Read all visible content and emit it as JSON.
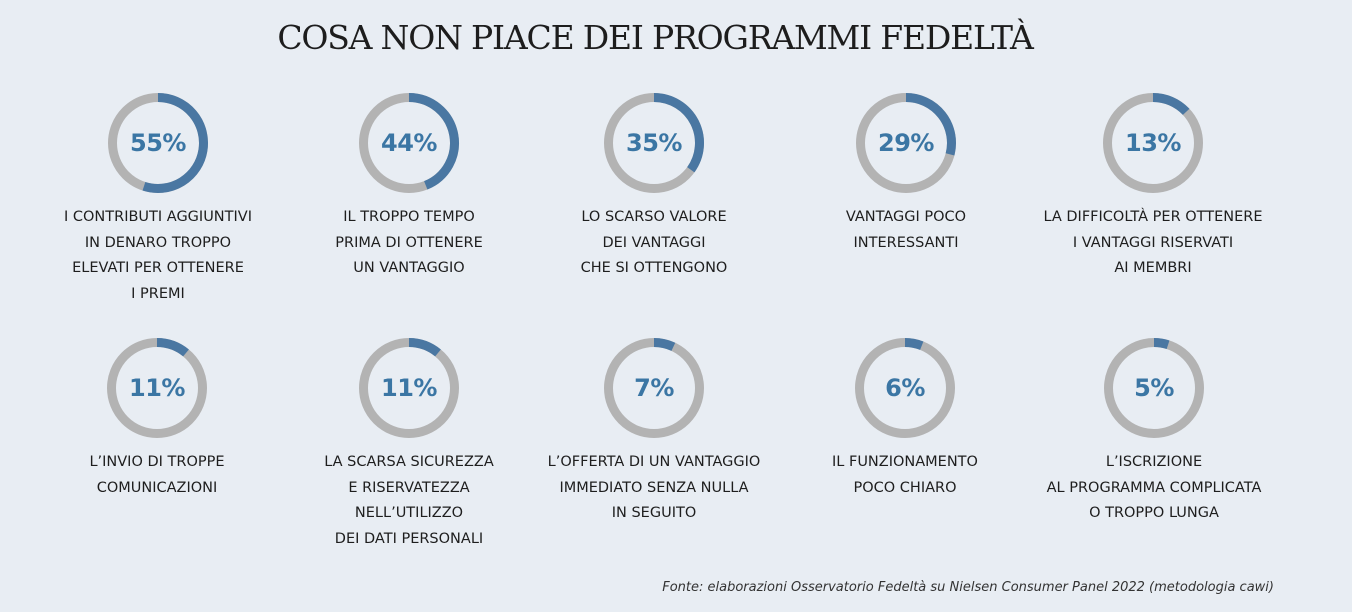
{
  "title": "COSA NON PIACE DEI PROGRAMMI FEDELTÀ",
  "source": "Fonte: elaborazioni Osservatorio Fedeltà su Nielsen Consumer Panel 2022 (metodologia cawi)",
  "colors": {
    "filled": "#4a77a2",
    "remaining": "#b3b3b3",
    "percent_text": "#3b76a4",
    "background": "#e8edf3"
  },
  "chart_data": {
    "type": "donut",
    "unit": "%",
    "items": [
      {
        "value": 55,
        "display": "55%",
        "label": "I CONTRIBUTI AGGIUNTIVI\nIN DENARO TROPPO\nELEVATI PER OTTENERE\nI PREMI"
      },
      {
        "value": 44,
        "display": "44%",
        "label": "IL TROPPO TEMPO\nPRIMA DI OTTENERE\nUN VANTAGGIO"
      },
      {
        "value": 35,
        "display": "35%",
        "label": "LO SCARSO VALORE\nDEI VANTAGGI\nCHE SI OTTENGONO"
      },
      {
        "value": 29,
        "display": "29%",
        "label": "VANTAGGI POCO\nINTERESSANTI"
      },
      {
        "value": 13,
        "display": "13%",
        "label": "LA DIFFICOLTÀ PER OTTENERE\nI VANTAGGI RISERVATI\nAI MEMBRI"
      },
      {
        "value": 11,
        "display": "11%",
        "label": "L’INVIO DI TROPPE\nCOMUNICAZIONI"
      },
      {
        "value": 11,
        "display": "11%",
        "label": "LA SCARSA SICUREZZA\nE RISERVATEZZA\nNELL’UTILIZZO\nDEI DATI PERSONALI"
      },
      {
        "value": 7,
        "display": "7%",
        "label": "L’OFFERTA DI UN VANTAGGIO\nIMMEDIATO SENZA NULLA\nIN SEGUITO"
      },
      {
        "value": 6,
        "display": "6%",
        "label": "IL FUNZIONAMENTO\nPOCO CHIARO"
      },
      {
        "value": 5,
        "display": "5%",
        "label": "L’ISCRIZIONE\nAL PROGRAMMA COMPLICATA\nO TROPPO LUNGA"
      }
    ]
  }
}
